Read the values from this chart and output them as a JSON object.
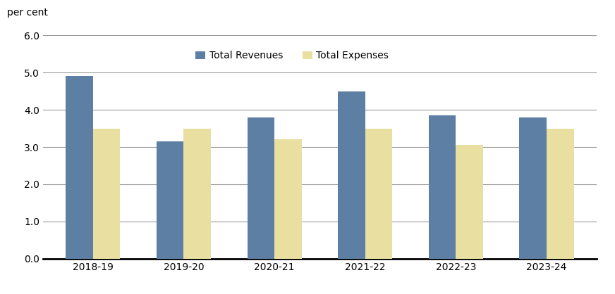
{
  "categories": [
    "2018-19",
    "2019-20",
    "2020-21",
    "2021-22",
    "2022-23",
    "2023-24"
  ],
  "revenues": [
    4.9,
    3.15,
    3.8,
    4.5,
    3.85,
    3.8
  ],
  "expenses": [
    3.5,
    3.5,
    3.2,
    3.5,
    3.05,
    3.5
  ],
  "revenue_color": "#5c7fa3",
  "expense_color": "#e8dfa0",
  "ylabel": "per cent",
  "ylim": [
    0.0,
    6.0
  ],
  "yticks": [
    0.0,
    1.0,
    2.0,
    3.0,
    4.0,
    5.0,
    6.0
  ],
  "legend_revenue": "Total Revenues",
  "legend_expense": "Total Expenses",
  "bar_width": 0.3,
  "background_color": "#ffffff",
  "grid_color": "#999999",
  "axis_label_fontsize": 10,
  "tick_fontsize": 10,
  "legend_fontsize": 10
}
